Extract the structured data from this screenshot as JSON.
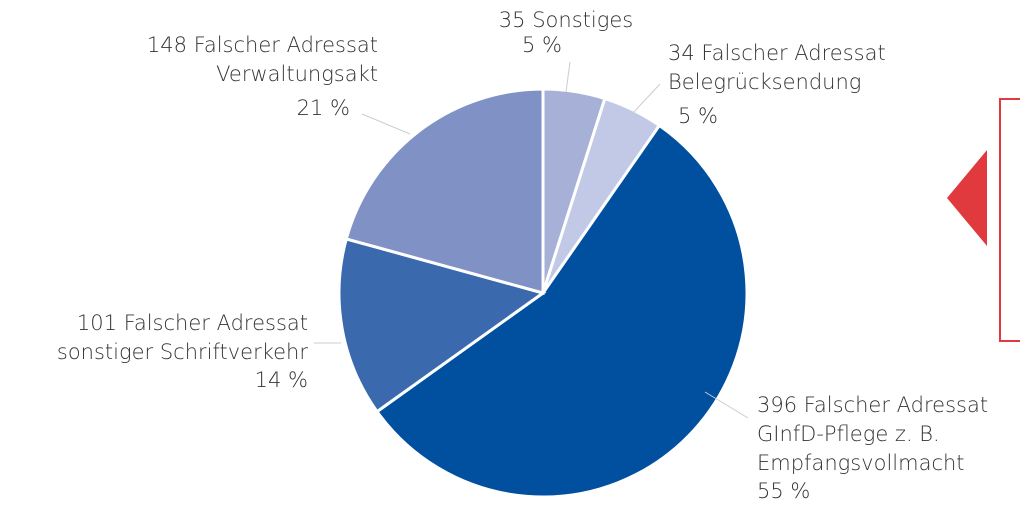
{
  "chart_data": {
    "type": "pie",
    "categories": [
      [
        "Sonstiges"
      ],
      [
        "Falscher Adressat",
        "Belegrücksendung"
      ],
      [
        "Falscher Adressat",
        "GInfD-Pflege z. B.",
        "Empfangsvollmacht"
      ],
      [
        "Falscher Adressat",
        "sonstiger Schriftverkehr"
      ],
      [
        "Falscher Adressat",
        "Verwaltungsakt"
      ]
    ],
    "values": [
      35,
      34,
      396,
      101,
      148
    ],
    "percent_labels": [
      "5 %",
      "5 %",
      "55 %",
      "14 %",
      "21 %"
    ],
    "colors": [
      "#a7b1d8",
      "#c2c9e6",
      "#00509f",
      "#3b69ad",
      "#8091c5"
    ]
  }
}
